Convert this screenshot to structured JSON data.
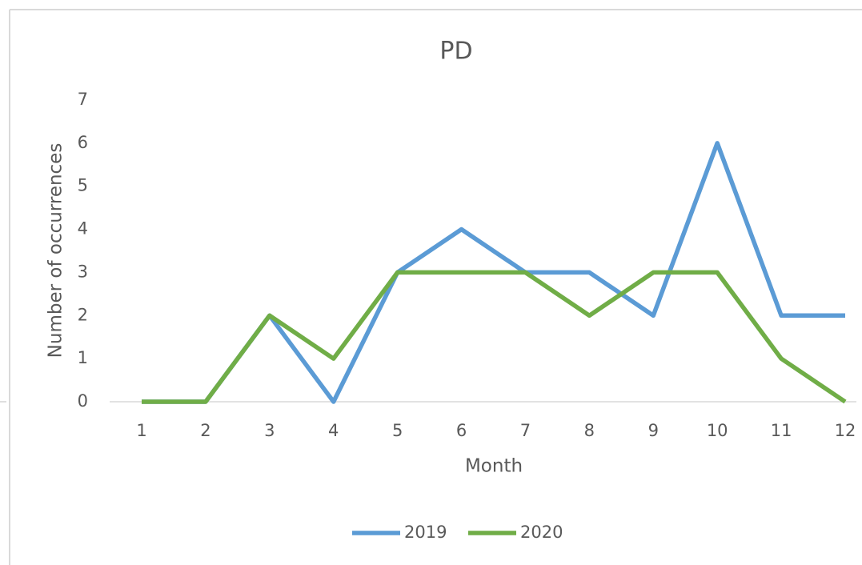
{
  "chart_data": {
    "type": "line",
    "title": "PD",
    "x_label": "Month",
    "y_label": "Number of occurrences",
    "categories": [
      "1",
      "2",
      "3",
      "4",
      "5",
      "6",
      "7",
      "8",
      "9",
      "10",
      "11",
      "12"
    ],
    "series": [
      {
        "name": "2019",
        "color": "#5b9bd5",
        "values": [
          0,
          0,
          2,
          0,
          3,
          4,
          3,
          3,
          2,
          6,
          2,
          2
        ]
      },
      {
        "name": "2020",
        "color": "#70ad47",
        "values": [
          0,
          0,
          2,
          1,
          3,
          3,
          3,
          2,
          3,
          3,
          1,
          0
        ]
      }
    ],
    "ylim": [
      0,
      7
    ],
    "yticks": [
      0,
      1,
      2,
      3,
      4,
      5,
      6,
      7
    ],
    "grid": false,
    "legend": "bottom"
  }
}
